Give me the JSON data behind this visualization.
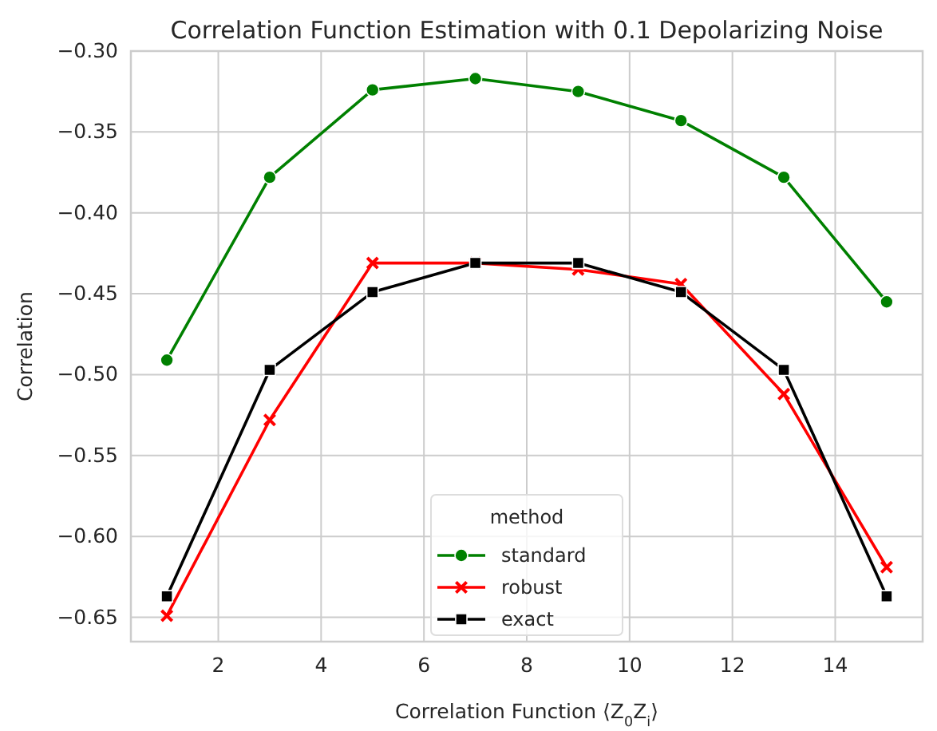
{
  "chart_data": {
    "type": "line",
    "title": "Correlation Function Estimation with 0.1 Depolarizing Noise",
    "xlabel": "Correlation Function ⟨Z$_{0}$Z$_{i}$⟩",
    "ylabel": "Correlation",
    "legend_title": "method",
    "x": [
      1,
      3,
      5,
      7,
      9,
      11,
      13,
      15
    ],
    "series": [
      {
        "name": "standard",
        "color": "#008000",
        "marker": "circle",
        "values": [
          -0.491,
          -0.378,
          -0.324,
          -0.317,
          -0.325,
          -0.343,
          -0.378,
          -0.455
        ]
      },
      {
        "name": "robust",
        "color": "#ff0000",
        "marker": "cross",
        "values": [
          -0.649,
          -0.528,
          -0.431,
          -0.431,
          -0.435,
          -0.444,
          -0.512,
          -0.619
        ]
      },
      {
        "name": "exact",
        "color": "#000000",
        "marker": "square",
        "values": [
          -0.637,
          -0.497,
          -0.449,
          -0.431,
          -0.431,
          -0.449,
          -0.497,
          -0.637
        ]
      }
    ],
    "xlim": [
      0.3,
      15.7
    ],
    "xticks": [
      2,
      4,
      6,
      8,
      10,
      12,
      14
    ],
    "ylim": [
      -0.665,
      -0.3
    ],
    "yticks": [
      {
        "value": -0.65,
        "label": "−0.65"
      },
      {
        "value": -0.6,
        "label": "−0.60"
      },
      {
        "value": -0.55,
        "label": "−0.55"
      },
      {
        "value": -0.5,
        "label": "−0.50"
      },
      {
        "value": -0.45,
        "label": "−0.45"
      },
      {
        "value": -0.4,
        "label": "−0.40"
      },
      {
        "value": -0.35,
        "label": "−0.35"
      },
      {
        "value": -0.3,
        "label": "−0.30"
      }
    ],
    "grid": true,
    "legend": "bottom",
    "line_style": "solid"
  }
}
